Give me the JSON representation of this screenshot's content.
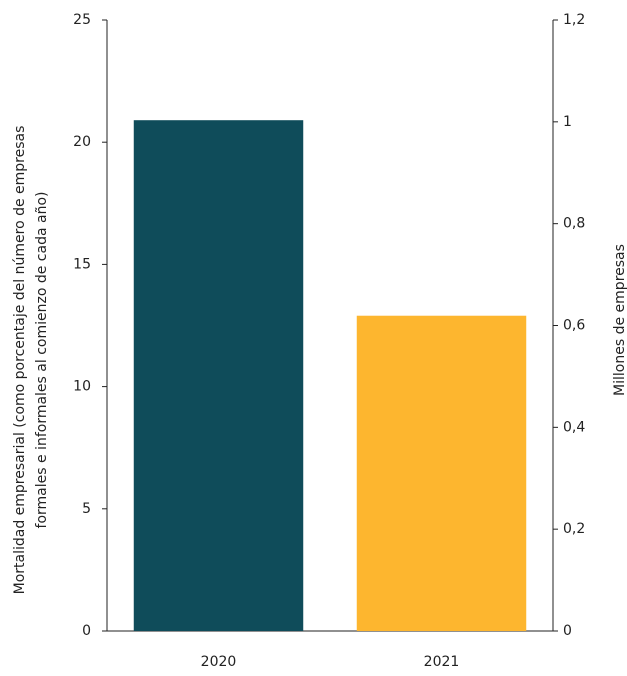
{
  "chart_data": {
    "type": "bar",
    "categories": [
      "2020",
      "2021"
    ],
    "values": [
      20.9,
      12.9
    ],
    "colors": [
      "#0f4c5a",
      "#fdb62f"
    ],
    "ylim": [
      0,
      25
    ],
    "yticks": [
      0,
      5,
      10,
      15,
      20,
      25
    ],
    "y2lim": [
      0,
      1.2
    ],
    "y2ticks": [
      0,
      {
        "value": 0.2,
        "label": "0,2"
      },
      {
        "value": 0.4,
        "label": "0,4"
      },
      {
        "value": 0.6,
        "label": "0,6"
      },
      {
        "value": 0.8,
        "label": "0,8"
      },
      1,
      {
        "value": 1.2,
        "label": "1,2"
      }
    ],
    "ylabel": [
      "Mortalidad empresarial (como porcentaje del número de empresas",
      "formales e informales al comienzo de cada año)"
    ],
    "y2label": "Millones de empresas"
  }
}
